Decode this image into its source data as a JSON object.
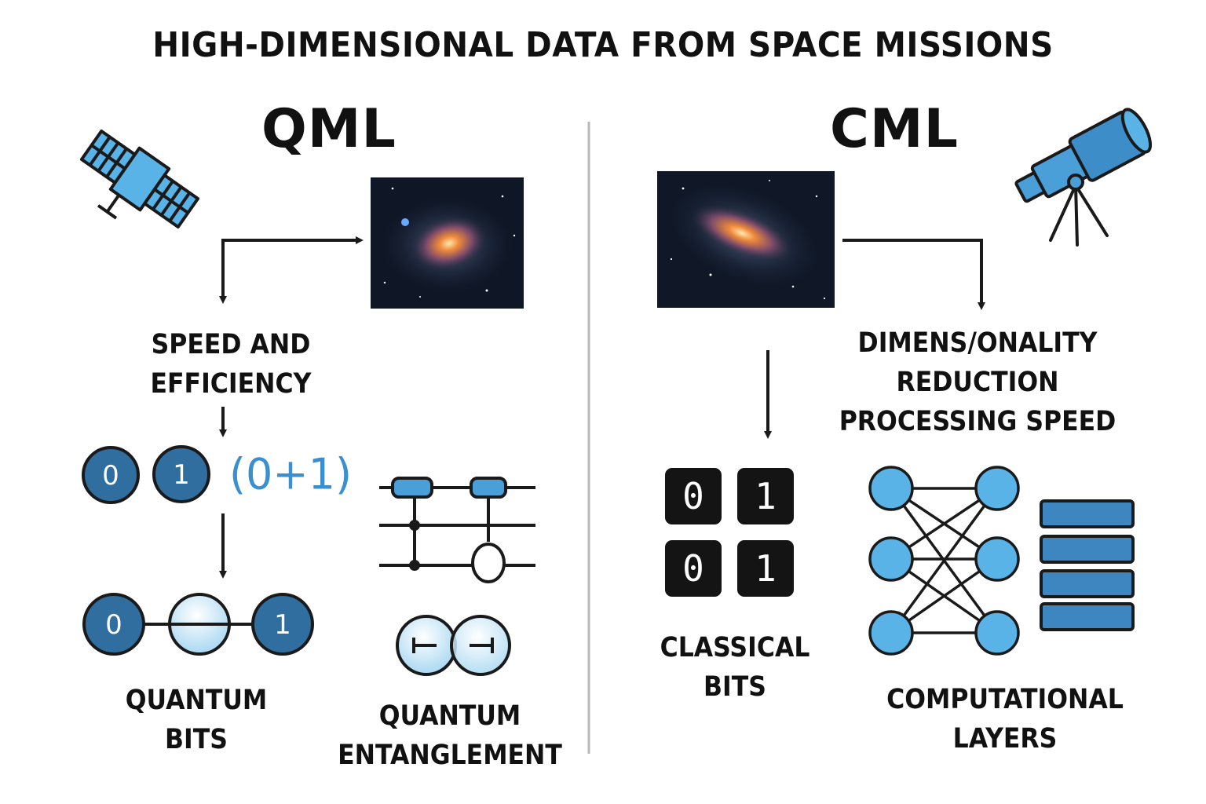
{
  "title": "HIGH-DIMENSIONAL DATA FROM SPACE MISSIONS",
  "qml": {
    "heading": "QML",
    "speed_lines": [
      "SPEED AND",
      "EFFICIENCY"
    ],
    "qubit_zero": "0",
    "qubit_one": "1",
    "superposition": "(0+1)",
    "bits_lines": [
      "QUANTUM",
      "BITS"
    ],
    "entanglement_lines": [
      "QUANTUM",
      "ENTANGLEMENT"
    ]
  },
  "cml": {
    "heading": "CML",
    "reduction_lines": [
      "DIMENS/ONALITY",
      "REDUCTION",
      "PROCESSING SPEED"
    ],
    "bits": [
      "0",
      "1",
      "0",
      "1"
    ],
    "classical_lines": [
      "CLASSICAL",
      "BITS"
    ],
    "layers_lines": [
      "COMPUTATIONAL",
      "LAYERS"
    ]
  },
  "colors": {
    "accent_blue": "#4b9fd8",
    "dark_blue": "#2f6e9e",
    "light_blue": "#cfe9f7",
    "black": "#141414",
    "divider": "#b8b8b8"
  }
}
